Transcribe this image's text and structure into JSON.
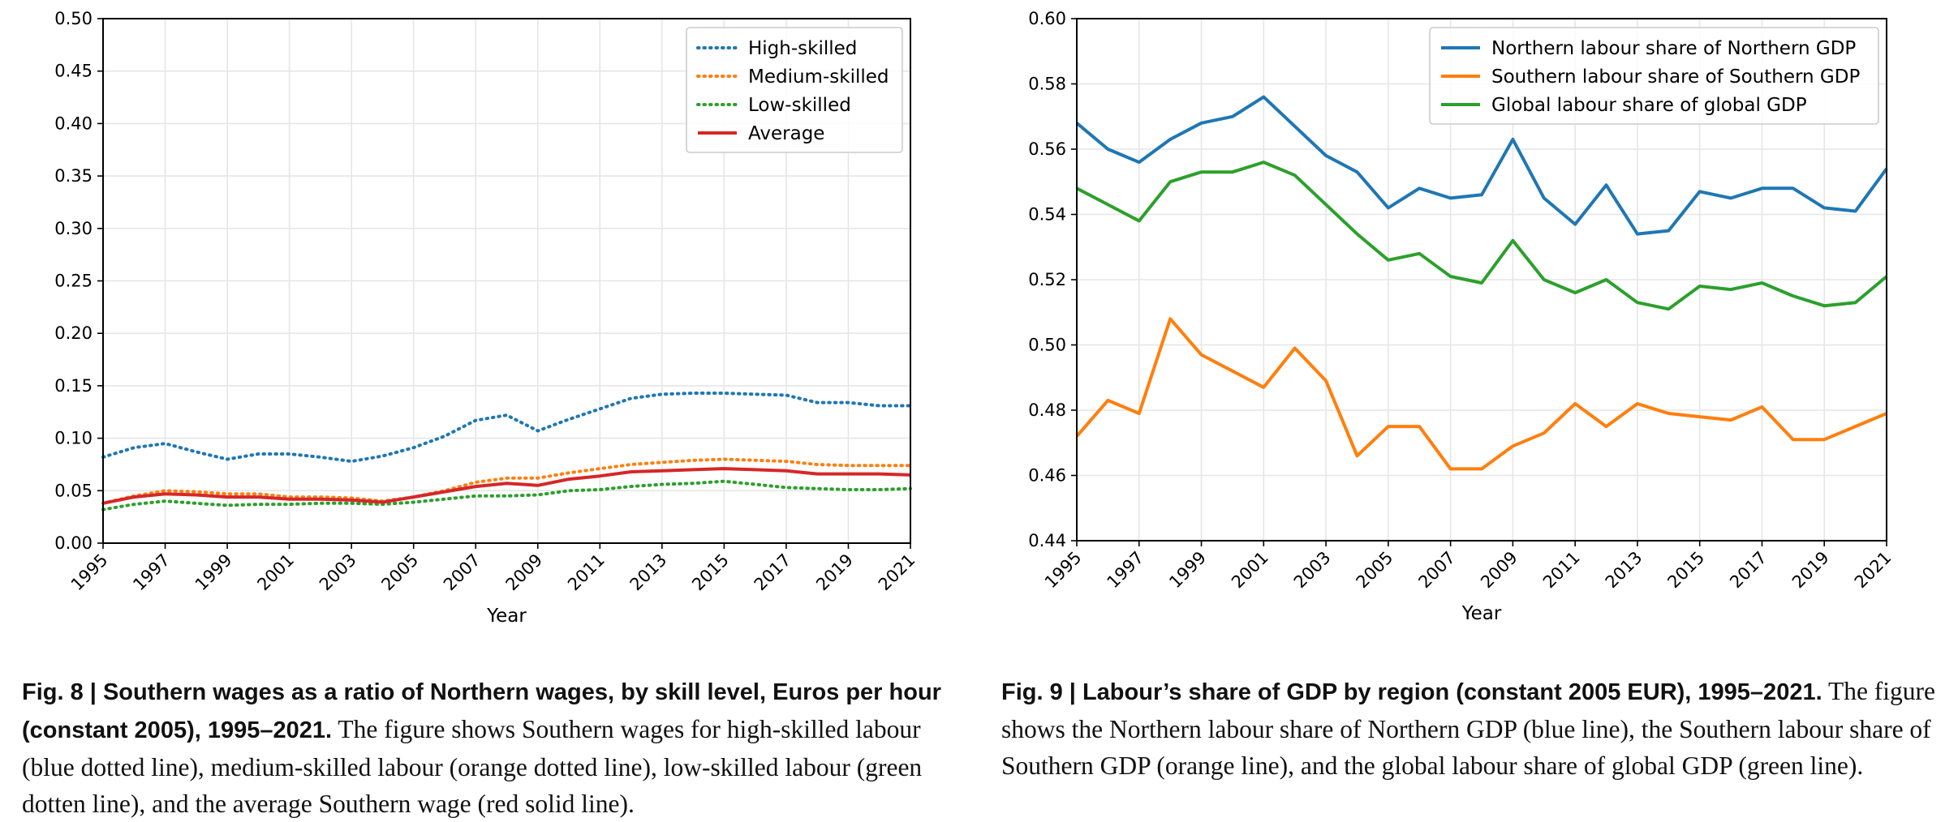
{
  "chart_data": [
    {
      "type": "line",
      "x": [
        1995,
        1996,
        1997,
        1998,
        1999,
        2000,
        2001,
        2002,
        2003,
        2004,
        2005,
        2006,
        2007,
        2008,
        2009,
        2010,
        2011,
        2012,
        2013,
        2014,
        2015,
        2016,
        2017,
        2018,
        2019,
        2020,
        2021
      ],
      "xticks": [
        "1995",
        "1997",
        "1999",
        "2001",
        "2003",
        "2005",
        "2007",
        "2009",
        "2011",
        "2013",
        "2015",
        "2017",
        "2019",
        "2021"
      ],
      "yticks": [
        "0.00",
        "0.05",
        "0.10",
        "0.15",
        "0.20",
        "0.25",
        "0.30",
        "0.35",
        "0.40",
        "0.45",
        "0.50"
      ],
      "xlabel": "Year",
      "ylabel": "",
      "xlim": [
        1995,
        2021
      ],
      "ylim": [
        0,
        0.5
      ],
      "grid": true,
      "legend": "top-right",
      "series": [
        {
          "name": "High-skilled",
          "color": "#1f77b4",
          "style": "dotted",
          "values": [
            0.082,
            0.091,
            0.095,
            0.087,
            0.08,
            0.085,
            0.085,
            0.082,
            0.078,
            0.083,
            0.091,
            0.102,
            0.117,
            0.122,
            0.107,
            0.118,
            0.128,
            0.138,
            0.142,
            0.143,
            0.143,
            0.142,
            0.141,
            0.134,
            0.134,
            0.131,
            0.131
          ]
        },
        {
          "name": "Medium-skilled",
          "color": "#ff7f0e",
          "style": "dotted",
          "values": [
            0.038,
            0.045,
            0.05,
            0.049,
            0.047,
            0.047,
            0.044,
            0.044,
            0.043,
            0.04,
            0.044,
            0.05,
            0.058,
            0.062,
            0.062,
            0.067,
            0.071,
            0.075,
            0.077,
            0.079,
            0.08,
            0.079,
            0.078,
            0.075,
            0.074,
            0.074,
            0.074
          ]
        },
        {
          "name": "Low-skilled",
          "color": "#2ca02c",
          "style": "dotted",
          "values": [
            0.032,
            0.037,
            0.04,
            0.038,
            0.036,
            0.037,
            0.037,
            0.038,
            0.038,
            0.037,
            0.039,
            0.042,
            0.045,
            0.045,
            0.046,
            0.05,
            0.051,
            0.054,
            0.056,
            0.057,
            0.059,
            0.056,
            0.053,
            0.052,
            0.051,
            0.051,
            0.052
          ]
        },
        {
          "name": "Average",
          "color": "#d62728",
          "style": "solid",
          "values": [
            0.038,
            0.044,
            0.047,
            0.046,
            0.044,
            0.044,
            0.042,
            0.042,
            0.041,
            0.039,
            0.044,
            0.049,
            0.054,
            0.057,
            0.055,
            0.061,
            0.064,
            0.068,
            0.069,
            0.07,
            0.071,
            0.07,
            0.069,
            0.066,
            0.066,
            0.066,
            0.065
          ]
        }
      ]
    },
    {
      "type": "line",
      "x": [
        1995,
        1996,
        1997,
        1998,
        1999,
        2000,
        2001,
        2002,
        2003,
        2004,
        2005,
        2006,
        2007,
        2008,
        2009,
        2010,
        2011,
        2012,
        2013,
        2014,
        2015,
        2016,
        2017,
        2018,
        2019,
        2020,
        2021
      ],
      "xticks": [
        "1995",
        "1997",
        "1999",
        "2001",
        "2003",
        "2005",
        "2007",
        "2009",
        "2011",
        "2013",
        "2015",
        "2017",
        "2019",
        "2021"
      ],
      "yticks": [
        "0.44",
        "0.46",
        "0.48",
        "0.50",
        "0.52",
        "0.54",
        "0.56",
        "0.58",
        "0.60"
      ],
      "xlabel": "Year",
      "ylabel": "",
      "xlim": [
        1995,
        2021
      ],
      "ylim": [
        0.44,
        0.6
      ],
      "grid": true,
      "legend": "top-right",
      "series": [
        {
          "name": "Northern labour share of Northern GDP",
          "color": "#1f77b4",
          "style": "solid",
          "values": [
            0.568,
            0.56,
            0.556,
            0.563,
            0.568,
            0.57,
            0.576,
            0.567,
            0.558,
            0.553,
            0.542,
            0.548,
            0.545,
            0.546,
            0.563,
            0.545,
            0.537,
            0.549,
            0.534,
            0.535,
            0.547,
            0.545,
            0.548,
            0.548,
            0.542,
            0.541,
            0.554
          ]
        },
        {
          "name": "Southern labour share of Southern GDP",
          "color": "#ff7f0e",
          "style": "solid",
          "values": [
            0.472,
            0.483,
            0.479,
            0.508,
            0.497,
            0.492,
            0.487,
            0.499,
            0.489,
            0.466,
            0.475,
            0.475,
            0.462,
            0.462,
            0.469,
            0.473,
            0.482,
            0.475,
            0.482,
            0.479,
            0.478,
            0.477,
            0.481,
            0.471,
            0.471,
            0.475,
            0.479
          ]
        },
        {
          "name": "Global labour share of global GDP",
          "color": "#2ca02c",
          "style": "solid",
          "values": [
            0.548,
            0.543,
            0.538,
            0.55,
            0.553,
            0.553,
            0.556,
            0.552,
            0.543,
            0.534,
            0.526,
            0.528,
            0.521,
            0.519,
            0.532,
            0.52,
            0.516,
            0.52,
            0.513,
            0.511,
            0.518,
            0.517,
            0.519,
            0.515,
            0.512,
            0.513,
            0.521
          ]
        }
      ]
    }
  ],
  "captions": {
    "fig8": {
      "bold": "Fig. 8 | Southern wages as a ratio of Northern wages, by skill level, Euros per hour (constant 2005), 1995–2021.",
      "text": " The figure shows Southern wages for high-skilled labour (blue dotted line), medium-skilled labour (orange dotted line), low-skilled labour (green dotten line), and the average Southern wage (red solid line)."
    },
    "fig9": {
      "bold": "Fig. 9 | Labour’s share of GDP by region (constant 2005 EUR), 1995–2021.",
      "text": " The figure shows the Northern labour share of Northern GDP (blue line), the Southern labour share of Southern GDP (orange line), and the global labour share of global GDP (green line)."
    }
  }
}
